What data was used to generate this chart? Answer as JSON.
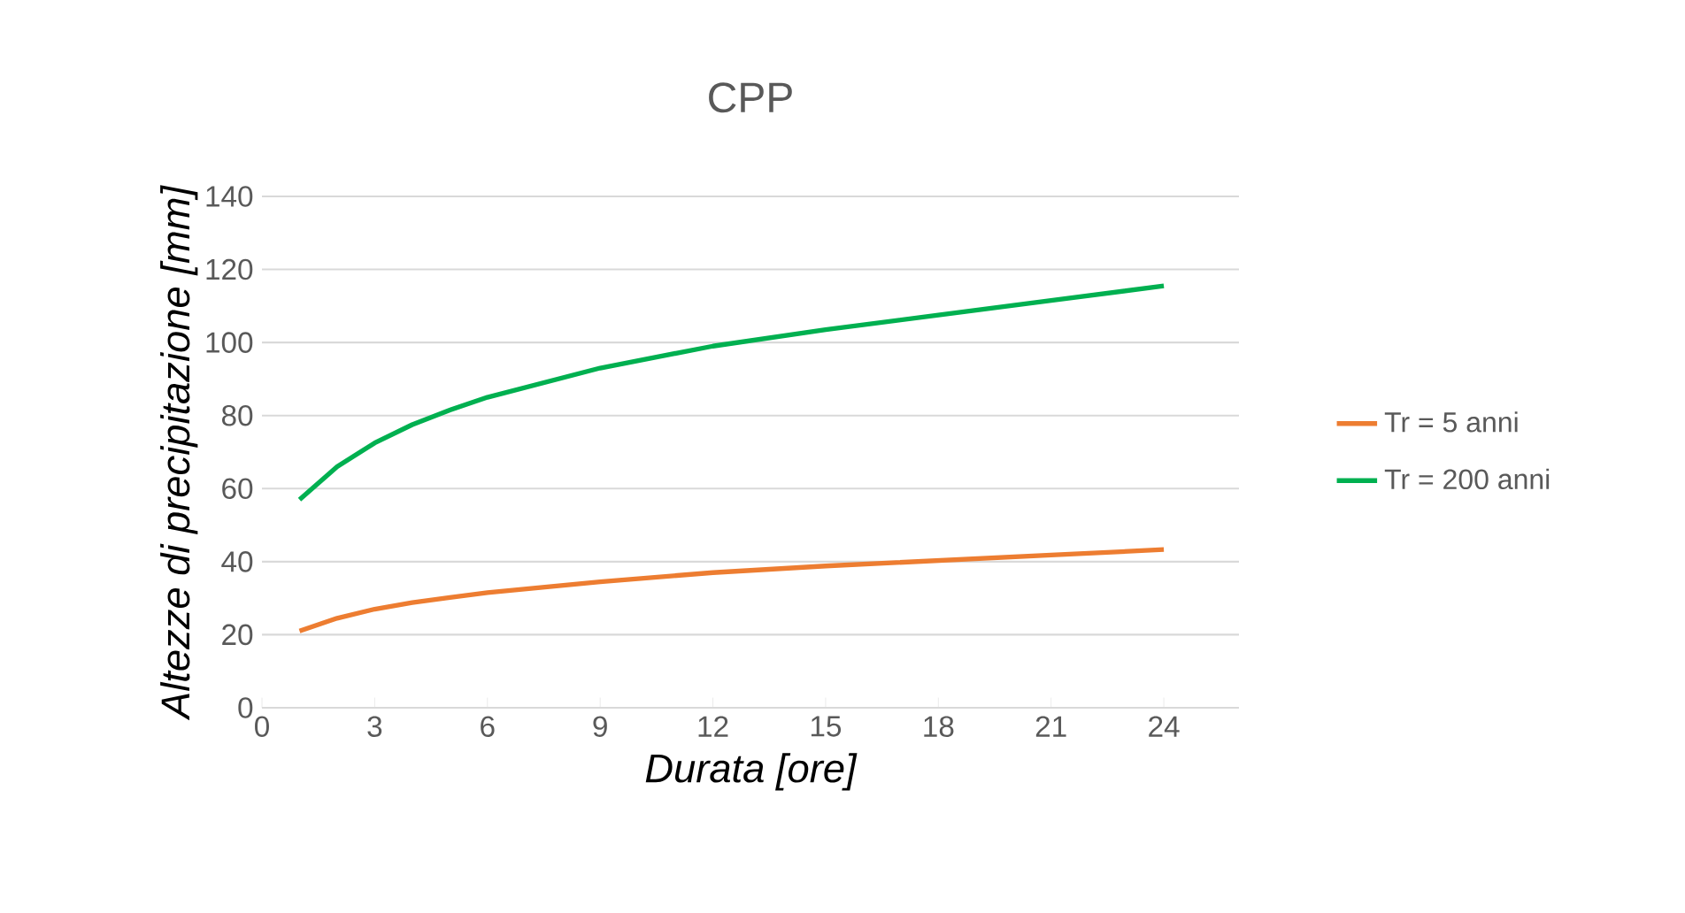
{
  "chart_data": {
    "type": "line",
    "title": "CPP",
    "xlabel": "Durata [ore]",
    "ylabel": "Altezze di precipitazione [mm]",
    "x": [
      1,
      2,
      3,
      4,
      5,
      6,
      9,
      12,
      15,
      18,
      21,
      24
    ],
    "series": [
      {
        "name": "Tr = 5 anni",
        "color": "#ed7d31",
        "values": [
          21,
          24.5,
          27,
          28.8,
          30.2,
          31.5,
          34.5,
          37,
          38.8,
          40.3,
          41.8,
          43.3
        ]
      },
      {
        "name": "Tr = 200 anni",
        "color": "#00b050",
        "values": [
          57,
          66,
          72.5,
          77.5,
          81.5,
          85,
          93,
          99,
          103.5,
          107.5,
          111.5,
          115.5
        ]
      }
    ],
    "xlim": [
      0,
      26
    ],
    "ylim": [
      0,
      140
    ],
    "xticks": [
      0,
      3,
      6,
      9,
      12,
      15,
      18,
      21,
      24
    ],
    "yticks": [
      0,
      20,
      40,
      60,
      80,
      100,
      120,
      140
    ],
    "grid": "y",
    "legend": "right",
    "marker": "none",
    "line_style": "solid"
  }
}
